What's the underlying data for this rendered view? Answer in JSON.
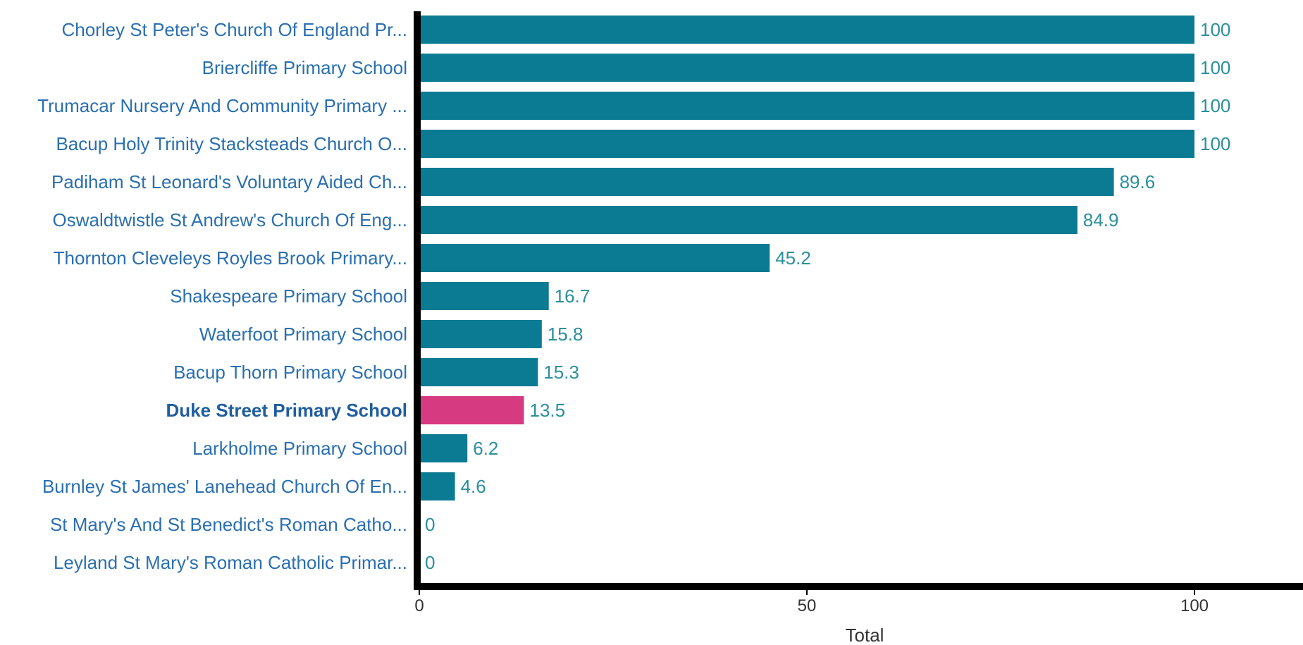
{
  "chart_data": {
    "type": "bar",
    "orientation": "horizontal",
    "categories": [
      "Chorley St Peter's Church Of England Pr...",
      "Briercliffe Primary School",
      "Trumacar Nursery And Community Primary ...",
      "Bacup Holy Trinity Stacksteads Church O...",
      "Padiham St Leonard's Voluntary Aided Ch...",
      "Oswaldtwistle St Andrew's Church Of Eng...",
      "Thornton Cleveleys Royles Brook Primary...",
      "Shakespeare Primary School",
      "Waterfoot Primary School",
      "Bacup Thorn Primary School",
      "Duke Street Primary School",
      "Larkholme Primary School",
      "Burnley St James' Lanehead Church Of En...",
      "St Mary's And St Benedict's Roman Catho...",
      "Leyland St Mary's Roman Catholic Primar..."
    ],
    "values": [
      100,
      100,
      100,
      100,
      89.6,
      84.9,
      45.2,
      16.7,
      15.8,
      15.3,
      13.5,
      6.2,
      4.6,
      0,
      0
    ],
    "value_labels": [
      "100",
      "100",
      "100",
      "100",
      "89.6",
      "84.9",
      "45.2",
      "16.7",
      "15.8",
      "15.3",
      "13.5",
      "6.2",
      "4.6",
      "0",
      "0"
    ],
    "highlight_index": 10,
    "xlabel": "Total",
    "ylabel": "",
    "title": "",
    "xlim": [
      0,
      114
    ],
    "xticks": [
      0,
      50,
      100
    ],
    "grid": false,
    "legend": "none",
    "colors": {
      "bar": "#0a7b92",
      "highlight": "#d63a80",
      "axis": "#000000"
    }
  }
}
